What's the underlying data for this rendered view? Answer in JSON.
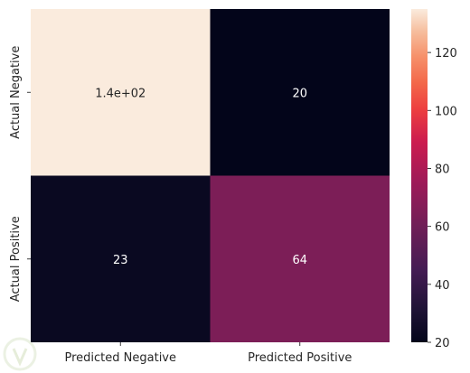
{
  "chart_data": {
    "type": "heatmap",
    "title": "",
    "xlabel": "",
    "ylabel": "",
    "x_categories": [
      "Predicted Negative",
      "Predicted Positive"
    ],
    "y_categories": [
      "Actual Negative",
      "Actual Positive"
    ],
    "values": [
      [
        135,
        20
      ],
      [
        23,
        64
      ]
    ],
    "annotations": [
      [
        "1.4e+02",
        "20"
      ],
      [
        "23",
        "64"
      ]
    ],
    "colorbar": {
      "min": 20,
      "max": 135,
      "ticks": [
        20,
        40,
        60,
        80,
        100,
        120
      ],
      "colormap": "rocket"
    },
    "grid": false
  }
}
